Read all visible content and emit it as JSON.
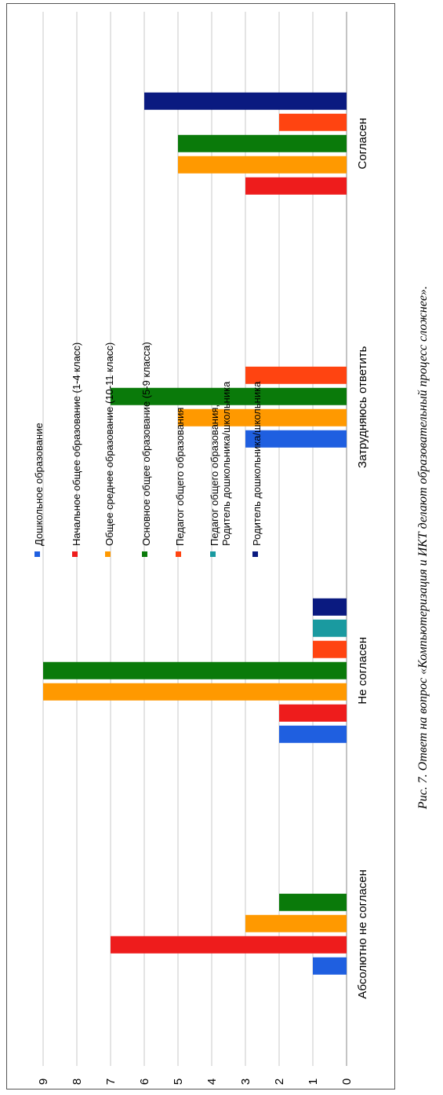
{
  "caption": "Рис. 7. Ответ на вопрос «Компьютеризация и ИКТ делают образовательный процесс сложнее».",
  "chart_data": {
    "type": "bar",
    "orientation": "vertical-bars-rotated-page",
    "title": "",
    "xlabel": "",
    "ylabel": "",
    "ylim": [
      0,
      9
    ],
    "yticks": [
      "0",
      "1",
      "2",
      "3",
      "4",
      "5",
      "6",
      "7",
      "8",
      "9"
    ],
    "grid": true,
    "legend_position": "right",
    "categories": [
      "Абсолютно не согласен",
      "Не согласен",
      "Затрудняюсь ответить",
      "Согласен"
    ],
    "series": [
      {
        "name": "Дошкольное образование",
        "color": "#1f5fe0",
        "values": [
          1,
          2,
          3,
          0
        ]
      },
      {
        "name": "Начальное общее образование (1-4 класс)",
        "color": "#ee1c1c",
        "values": [
          7,
          2,
          0,
          3
        ]
      },
      {
        "name": "Общее среднее образование (10-11 класс)",
        "color": "#ff9900",
        "values": [
          3,
          9,
          5,
          5
        ]
      },
      {
        "name": "Основное общее образование (5-9 класса)",
        "color": "#0a7a0a",
        "values": [
          2,
          9,
          7,
          5
        ]
      },
      {
        "name": "Педагог общего образования",
        "color": "#ff4411",
        "values": [
          0,
          1,
          3,
          2
        ]
      },
      {
        "name": "Педагог общего образования, Родитель дошкольника/школьника",
        "color": "#1a9aa0",
        "values": [
          0,
          1,
          0,
          0
        ]
      },
      {
        "name": "Родитель дошкольника/школьника",
        "color": "#0a1a80",
        "values": [
          0,
          1,
          0,
          6
        ]
      }
    ]
  }
}
